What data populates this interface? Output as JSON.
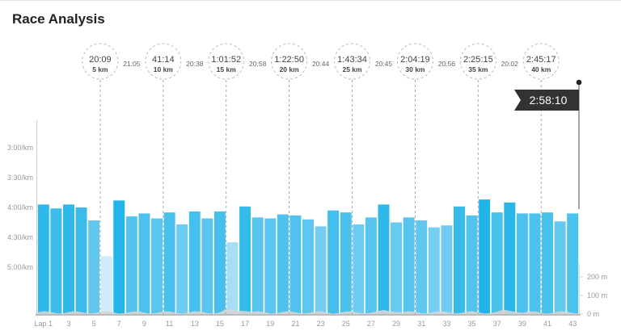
{
  "title": "Race Analysis",
  "chart_data": {
    "type": "bar",
    "ylabel": "pace",
    "y_ticks": [
      {
        "label": "3:00/km",
        "sec": 180
      },
      {
        "label": "3:30/km",
        "sec": 210
      },
      {
        "label": "4:00/km",
        "sec": 240
      },
      {
        "label": "4:30/km",
        "sec": 270
      },
      {
        "label": "5:00/km",
        "sec": 300
      }
    ],
    "elev_ticks": [
      {
        "label": "200 m",
        "m": 200
      },
      {
        "label": "100 m",
        "m": 100
      },
      {
        "label": "0 m",
        "m": 0
      }
    ],
    "x_ticks": [
      "Lap 1",
      "3",
      "5",
      "7",
      "9",
      "11",
      "13",
      "15",
      "17",
      "19",
      "21",
      "23",
      "25",
      "27",
      "29",
      "31",
      "33",
      "35",
      "37",
      "39",
      "41",
      "43"
    ],
    "laps": [
      1,
      2,
      3,
      4,
      5,
      6,
      7,
      8,
      9,
      10,
      11,
      12,
      13,
      14,
      15,
      16,
      17,
      18,
      19,
      20,
      21,
      22,
      23,
      24,
      25,
      26,
      27,
      28,
      29,
      30,
      31,
      32,
      33,
      34,
      35,
      36,
      37,
      38,
      39,
      40,
      41,
      42,
      43
    ],
    "pace_sec_per_km": [
      237,
      241,
      237,
      240,
      253,
      289,
      233,
      249,
      246,
      251,
      245,
      257,
      244,
      251,
      244,
      275,
      239,
      250,
      251,
      247,
      248,
      252,
      259,
      243,
      245,
      257,
      250,
      237,
      255,
      250,
      253,
      260,
      258,
      239,
      248,
      232,
      245,
      235,
      246,
      246,
      245,
      254,
      246
    ],
    "splits": [
      {
        "time": "20:09",
        "dist": "5 km",
        "lap": 5.5
      },
      {
        "time": "41:14",
        "dist": "10 km",
        "lap": 10.5
      },
      {
        "time": "1:01:52",
        "dist": "15 km",
        "lap": 15.5
      },
      {
        "time": "1:22:50",
        "dist": "20 km",
        "lap": 20.5
      },
      {
        "time": "1:43:34",
        "dist": "25 km",
        "lap": 25.5
      },
      {
        "time": "2:04:19",
        "dist": "30 km",
        "lap": 30.5
      },
      {
        "time": "2:25:15",
        "dist": "35 km",
        "lap": 35.5
      },
      {
        "time": "2:45:17",
        "dist": "40 km",
        "lap": 40.5
      }
    ],
    "split_gaps": [
      "21:05",
      "20:38",
      "20:58",
      "20:44",
      "20:45",
      "20:56",
      "20:02"
    ],
    "finish_time": "2:58:10"
  }
}
